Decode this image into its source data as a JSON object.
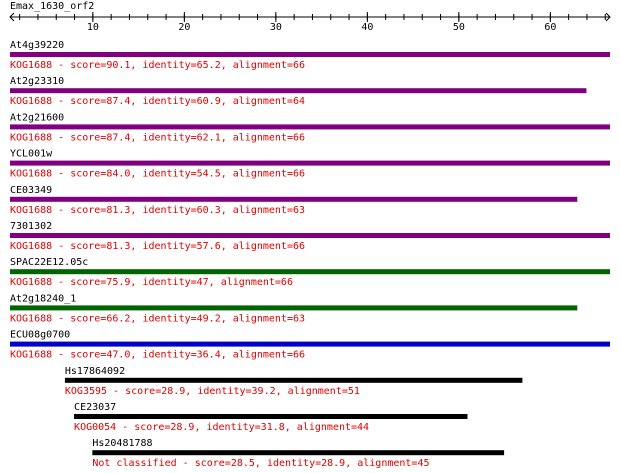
{
  "query": {
    "name": "Emax_1630_orf2",
    "length": 66
  },
  "axis": {
    "range": [
      1,
      66
    ],
    "tick_labels": [
      "10",
      "20",
      "30",
      "40",
      "50",
      "60"
    ],
    "tick_values": [
      10,
      20,
      30,
      40,
      50,
      60
    ],
    "minor_step": 2
  },
  "colors": {
    "purple": "#800080",
    "green": "#006400",
    "blue": "#0000c8",
    "black": "#000000",
    "label_red": "#e00000"
  },
  "hits": [
    {
      "name": "At4g39220",
      "desc": "KOG1688 - score=90.1, identity=65.2, alignment=66",
      "start": 1,
      "end": 66,
      "color": "purple"
    },
    {
      "name": "At2g23310",
      "desc": "KOG1688 - score=87.4, identity=60.9, alignment=64",
      "start": 1,
      "end": 64,
      "color": "purple"
    },
    {
      "name": "At2g21600",
      "desc": "KOG1688 - score=87.4, identity=62.1, alignment=66",
      "start": 1,
      "end": 66,
      "color": "purple"
    },
    {
      "name": "YCL001w",
      "desc": "KOG1688 - score=84.0, identity=54.5, alignment=66",
      "start": 1,
      "end": 66,
      "color": "purple"
    },
    {
      "name": "CE03349",
      "desc": "KOG1688 - score=81.3, identity=60.3, alignment=63",
      "start": 1,
      "end": 63,
      "color": "purple"
    },
    {
      "name": "7301302",
      "desc": "KOG1688 - score=81.3, identity=57.6, alignment=66",
      "start": 1,
      "end": 66,
      "color": "purple"
    },
    {
      "name": "SPAC22E12.05c",
      "desc": "KOG1688 - score=75.9, identity=47, alignment=66",
      "start": 1,
      "end": 66,
      "color": "green"
    },
    {
      "name": "At2g18240_1",
      "desc": "KOG1688 - score=66.2, identity=49.2, alignment=63",
      "start": 1,
      "end": 63,
      "color": "green"
    },
    {
      "name": "ECU08g0700",
      "desc": "KOG1688 - score=47.0, identity=36.4, alignment=66",
      "start": 1,
      "end": 66,
      "color": "blue"
    },
    {
      "name": "Hs17864092",
      "desc": "KOG3595 - score=28.9, identity=39.2, alignment=51",
      "start": 7,
      "end": 57,
      "color": "black"
    },
    {
      "name": "CE23037",
      "desc": "KOG0054 - score=28.9, identity=31.8, alignment=44",
      "start": 8,
      "end": 51,
      "color": "black"
    },
    {
      "name": "Hs20481788",
      "desc": "Not classified - score=28.5, identity=28.9, alignment=45",
      "start": 10,
      "end": 55,
      "color": "black"
    }
  ]
}
